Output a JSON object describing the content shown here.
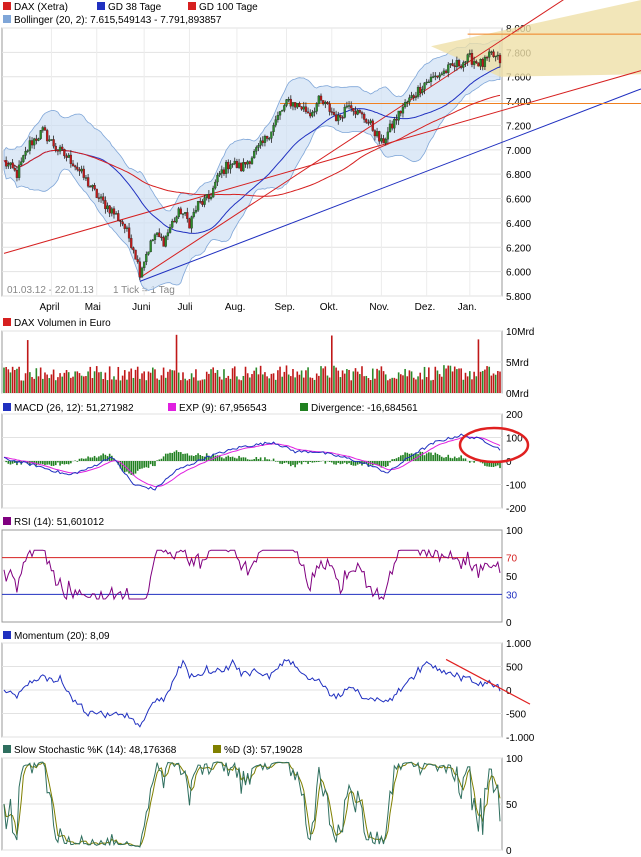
{
  "chart_data": [
    {
      "id": "price",
      "type": "candlestick",
      "legend": [
        {
          "label": "DAX (Xetra)",
          "color": "#d62020"
        },
        {
          "label": "GD 38 Tage",
          "color": "#2030c0"
        },
        {
          "label": "GD 100 Tage",
          "color": "#d62020"
        }
      ],
      "bollinger_label": "Bollinger (20, 2): 7.615,549143 - 7.791,893857",
      "bollinger_color": "#7fa6d8",
      "date_range_label": "01.03.12 - 22.01.13",
      "tick_label": "1 Tick = 1 Tag",
      "x_labels": [
        "April",
        "Mai",
        "Juni",
        "Juli",
        "Aug.",
        "Sep.",
        "Okt.",
        "Nov.",
        "Dez.",
        "Jan."
      ],
      "y_ticks": [
        "5.800",
        "6.000",
        "6.200",
        "6.400",
        "6.600",
        "6.800",
        "7.000",
        "7.200",
        "7.400",
        "7.600",
        "7.800",
        "8.000"
      ],
      "ylim": [
        5800,
        8000
      ],
      "close_anchors": [
        [
          0,
          6900
        ],
        [
          6,
          6800
        ],
        [
          12,
          7050
        ],
        [
          18,
          7150
        ],
        [
          25,
          7000
        ],
        [
          32,
          6900
        ],
        [
          38,
          6750
        ],
        [
          44,
          6600
        ],
        [
          50,
          6500
        ],
        [
          55,
          6400
        ],
        [
          60,
          6200
        ],
        [
          63,
          6000
        ],
        [
          66,
          6150
        ],
        [
          70,
          6300
        ],
        [
          74,
          6250
        ],
        [
          78,
          6400
        ],
        [
          82,
          6500
        ],
        [
          86,
          6400
        ],
        [
          90,
          6550
        ],
        [
          95,
          6600
        ],
        [
          100,
          6800
        ],
        [
          105,
          6900
        ],
        [
          110,
          6850
        ],
        [
          115,
          6950
        ],
        [
          120,
          7050
        ],
        [
          125,
          7200
        ],
        [
          128,
          7300
        ],
        [
          132,
          7400
        ],
        [
          138,
          7350
        ],
        [
          142,
          7300
        ],
        [
          146,
          7400
        ],
        [
          150,
          7350
        ],
        [
          155,
          7250
        ],
        [
          160,
          7400
        ],
        [
          164,
          7300
        ],
        [
          168,
          7250
        ],
        [
          172,
          7150
        ],
        [
          175,
          7050
        ],
        [
          180,
          7200
        ],
        [
          185,
          7350
        ],
        [
          190,
          7450
        ],
        [
          195,
          7550
        ],
        [
          200,
          7600
        ],
        [
          205,
          7650
        ],
        [
          210,
          7700
        ],
        [
          216,
          7750
        ],
        [
          222,
          7700
        ],
        [
          226,
          7780
        ],
        [
          230,
          7730
        ]
      ],
      "annotation_lines": [
        "red upper trend channel",
        "red lower trend channel",
        "blue support trend line",
        "orange resistance lines"
      ]
    },
    {
      "id": "volume",
      "type": "bar",
      "legend": [
        {
          "label": "DAX Volumen in Euro",
          "color": "#d62020"
        }
      ],
      "y_ticks": [
        "0Mrd",
        "5Mrd",
        "10Mrd"
      ],
      "ylim": [
        0,
        10
      ]
    },
    {
      "id": "macd",
      "type": "line",
      "legend": [
        {
          "label": "MACD (26, 12): 51,271982",
          "color": "#2030c0"
        },
        {
          "label": "EXP (9): 67,956543",
          "color": "#e020e0"
        },
        {
          "label": "Divergence: -16,684561",
          "color": "#208020"
        }
      ],
      "y_ticks": [
        "-200",
        "-100",
        "0",
        "100",
        "200"
      ],
      "ylim": [
        -200,
        200
      ],
      "macd_anchors": [
        [
          0,
          10
        ],
        [
          15,
          -20
        ],
        [
          30,
          -60
        ],
        [
          40,
          -30
        ],
        [
          50,
          20
        ],
        [
          60,
          -100
        ],
        [
          70,
          -120
        ],
        [
          80,
          -40
        ],
        [
          95,
          20
        ],
        [
          110,
          60
        ],
        [
          125,
          80
        ],
        [
          135,
          40
        ],
        [
          145,
          40
        ],
        [
          160,
          10
        ],
        [
          170,
          -20
        ],
        [
          178,
          -50
        ],
        [
          190,
          30
        ],
        [
          200,
          80
        ],
        [
          212,
          110
        ],
        [
          222,
          90
        ],
        [
          230,
          50
        ]
      ]
    },
    {
      "id": "rsi",
      "type": "line",
      "legend": [
        {
          "label": "RSI (14): 51,601012",
          "color": "#800080"
        }
      ],
      "y_ticks": [
        "0",
        "30",
        "50",
        "70",
        "100"
      ],
      "ylim": [
        0,
        100
      ],
      "reference_levels": [
        70,
        30
      ]
    },
    {
      "id": "momentum",
      "type": "line",
      "legend": [
        {
          "label": "Momentum (20): 8,09",
          "color": "#2030c0"
        }
      ],
      "y_ticks": [
        "-1.000",
        "-500",
        "0",
        "500",
        "1.000"
      ],
      "ylim": [
        -1000,
        1000
      ]
    },
    {
      "id": "stochastic",
      "type": "line",
      "legend": [
        {
          "label": "Slow Stochastic %K (14): 48,176368",
          "color": "#2f6f5f"
        },
        {
          "label": "%D (3): 57,19028",
          "color": "#808000"
        }
      ],
      "y_ticks": [
        "0",
        "50",
        "100"
      ],
      "ylim": [
        0,
        100
      ]
    }
  ]
}
